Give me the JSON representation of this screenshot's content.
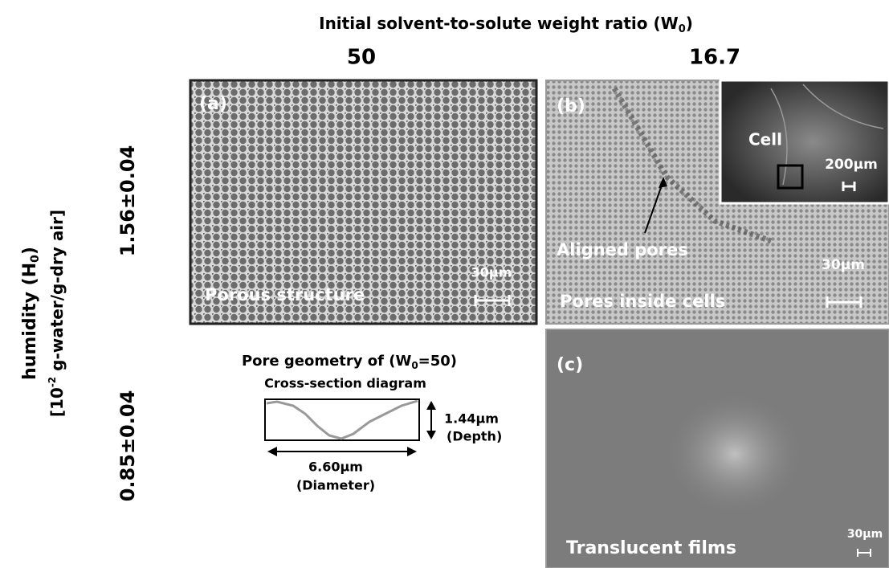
{
  "header": {
    "title": [
      "Initial solvent-to-solute weight ratio (W",
      "0",
      ")"
    ],
    "columns": [
      "50",
      "16.7"
    ]
  },
  "side": {
    "label_line1": [
      "humidity (H",
      "0",
      ")"
    ],
    "label_line2": [
      "[10",
      "-2",
      " g-water/g-dry air]"
    ],
    "rows": [
      "1.56±0.04",
      "0.85±0.04"
    ]
  },
  "panels": [
    {
      "tag": "(a)",
      "caption": "Porous structure",
      "scale": "30μm"
    },
    {
      "tag": "(b)",
      "annotation": "Aligned pores",
      "caption": "Pores inside cells",
      "scale": "30μm",
      "inset": {
        "label": "Cell",
        "scale": "200μm"
      }
    },
    {
      "tag": "(c)",
      "caption": "Translucent films",
      "scale": "30μm"
    }
  ],
  "diagram": {
    "title": [
      "Pore geometry of (W",
      "0",
      "=50)"
    ],
    "subtitle": "Cross-section diagram",
    "depth": "1.44μm",
    "depth_label": "(Depth)",
    "diameter": "6.60μm",
    "diameter_label": "(Diameter)"
  }
}
